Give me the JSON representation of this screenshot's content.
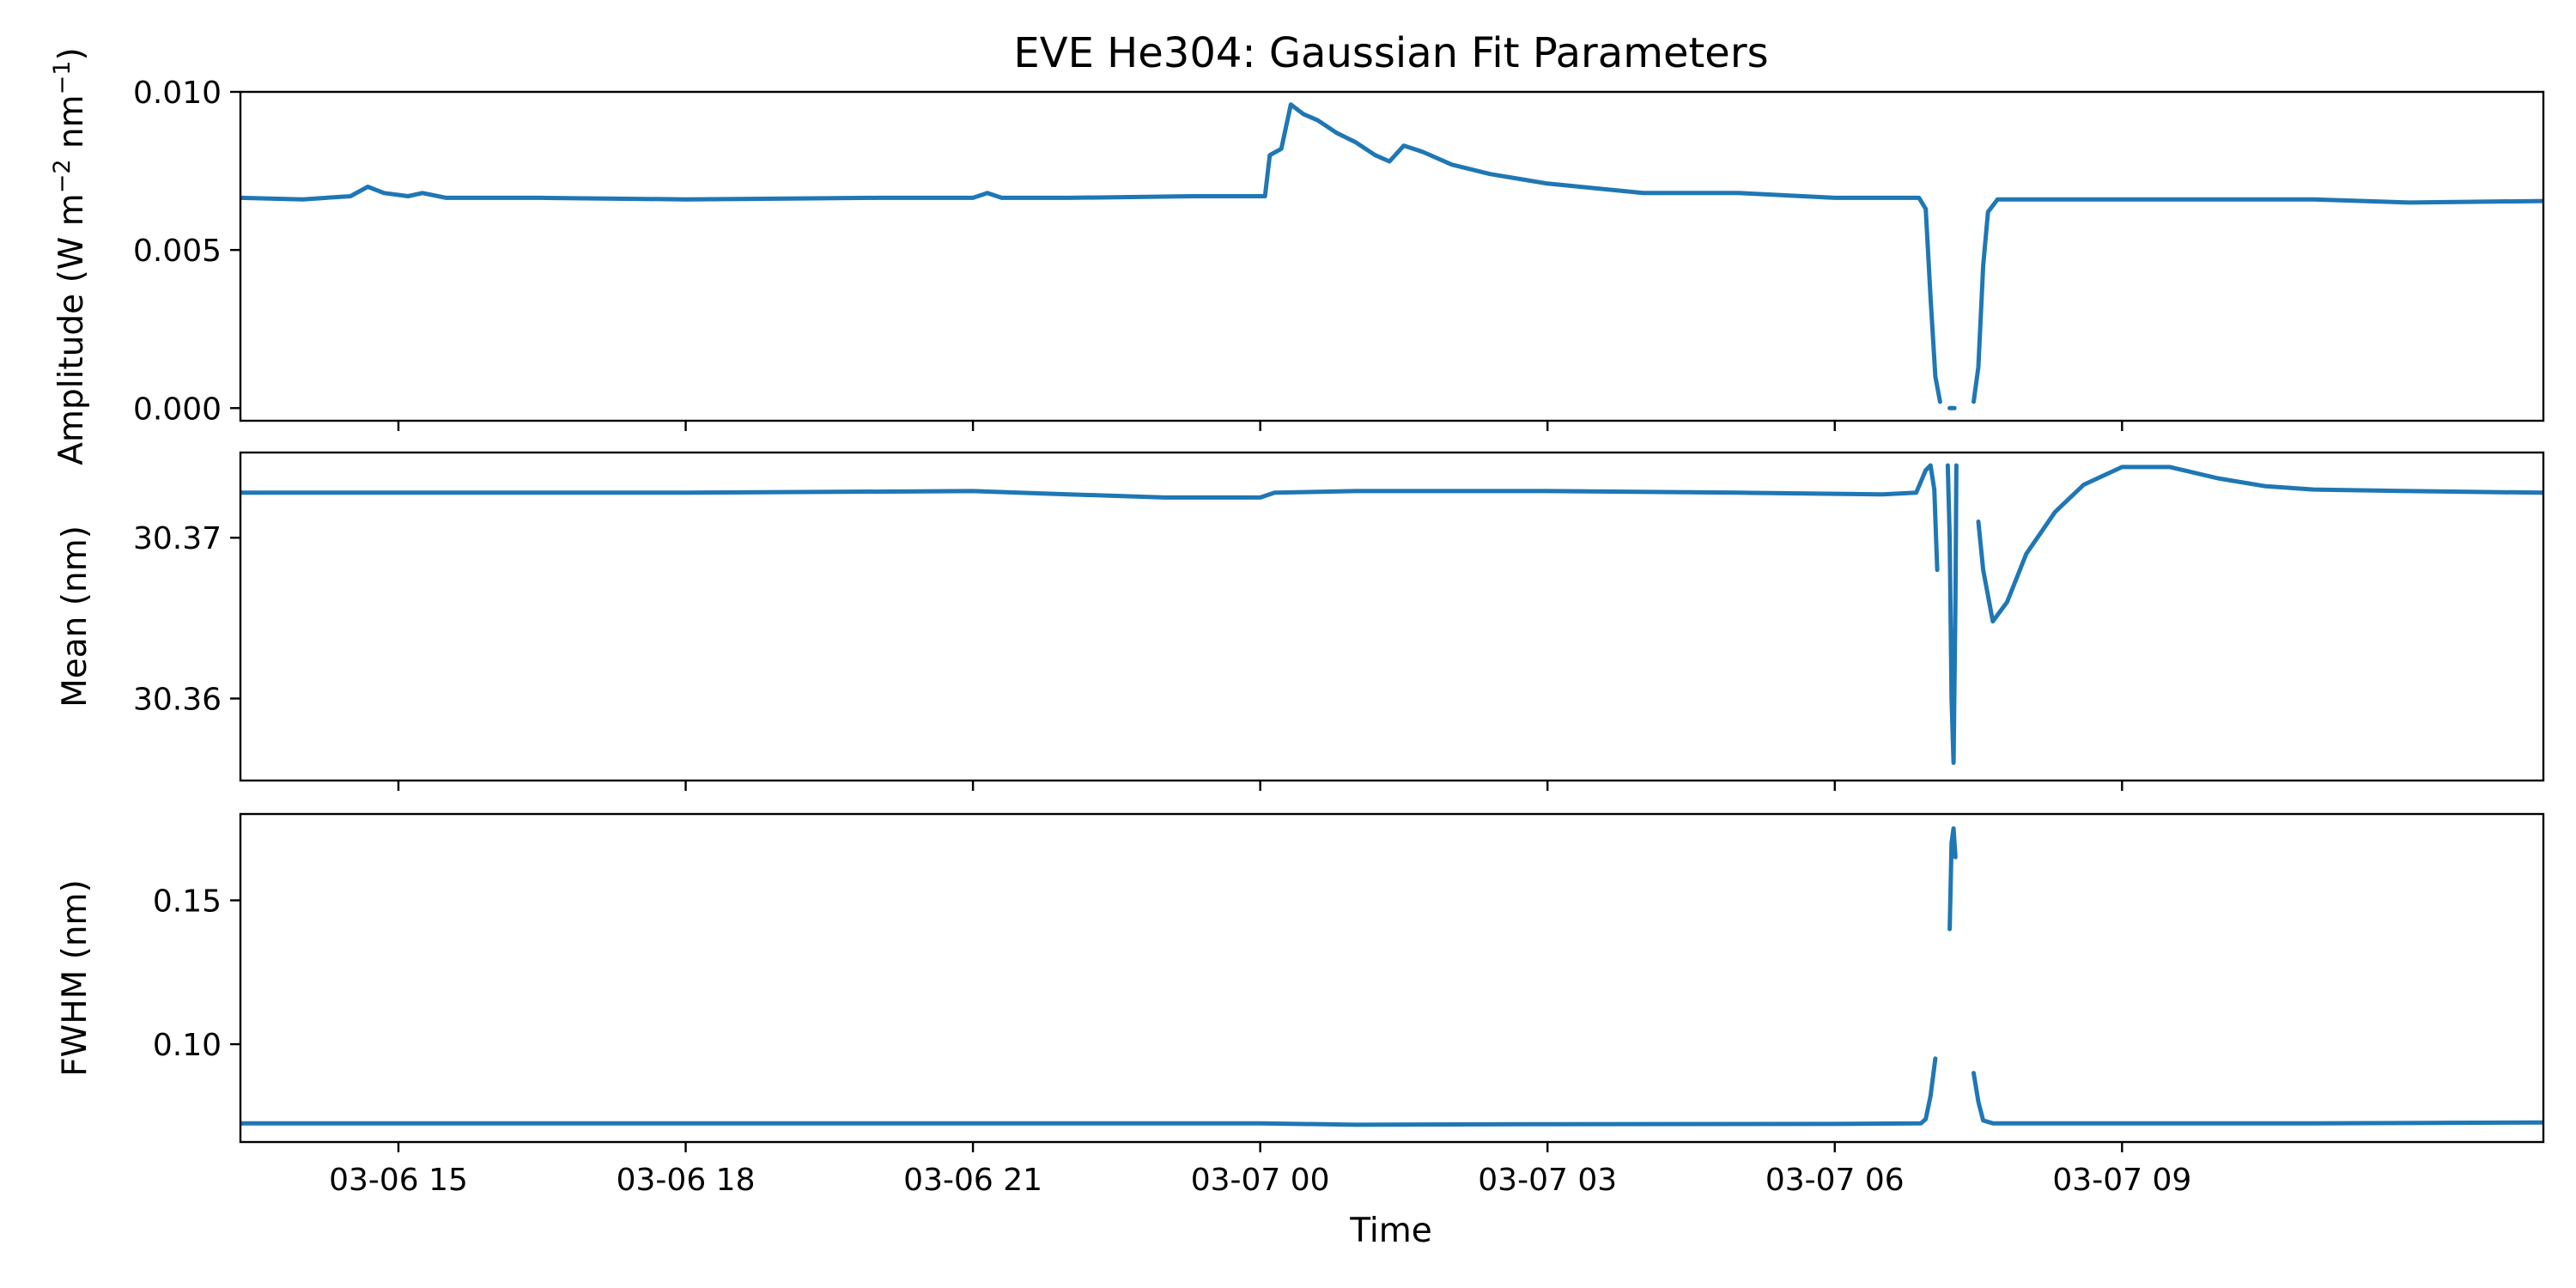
{
  "chart_data": {
    "type": "line",
    "title": "EVE He304: Gaussian Fit Parameters",
    "xlabel": "Time",
    "x_ticks": [
      "03-06 15",
      "03-06 18",
      "03-06 21",
      "03-07 00",
      "03-07 03",
      "03-07 06",
      "03-07 09"
    ],
    "x_ticks_hours": [
      15,
      18,
      21,
      24,
      27,
      30,
      33
    ],
    "xlim_hours": [
      13.35,
      37.4
    ],
    "x_units": "hours since 03-06 00",
    "grid": false,
    "color": "#1f77b4",
    "panels": [
      {
        "name": "amplitude",
        "ylabel": "Amplitude (W m",
        "ylabel_sup1": "−2",
        "ylabel_mid": " nm",
        "ylabel_sup2": "−1",
        "ylabel_end": ")",
        "ylim": [
          -0.0004,
          0.01
        ],
        "y_ticks": [
          0.0,
          0.005,
          0.01
        ],
        "y_tick_labels": [
          "0.000",
          "0.005",
          "0.010"
        ],
        "segments": [
          [
            [
              13.35,
              0.00665
            ],
            [
              14.0,
              0.0066
            ],
            [
              14.5,
              0.0067
            ],
            [
              14.68,
              0.007
            ],
            [
              14.85,
              0.0068
            ],
            [
              15.1,
              0.0067
            ],
            [
              15.25,
              0.0068
            ],
            [
              15.5,
              0.00665
            ],
            [
              16.5,
              0.00665
            ],
            [
              18.0,
              0.0066
            ],
            [
              20.0,
              0.00665
            ],
            [
              21.0,
              0.00665
            ],
            [
              21.15,
              0.0068
            ],
            [
              21.3,
              0.00665
            ],
            [
              22.0,
              0.00665
            ],
            [
              23.3,
              0.0067
            ],
            [
              24.05,
              0.0067
            ],
            [
              24.1,
              0.008
            ],
            [
              24.22,
              0.0082
            ],
            [
              24.32,
              0.0096
            ],
            [
              24.45,
              0.0093
            ],
            [
              24.6,
              0.0091
            ],
            [
              24.8,
              0.0087
            ],
            [
              25.0,
              0.0084
            ],
            [
              25.2,
              0.008
            ],
            [
              25.35,
              0.0078
            ],
            [
              25.5,
              0.0083
            ],
            [
              25.7,
              0.0081
            ],
            [
              26.0,
              0.0077
            ],
            [
              26.4,
              0.0074
            ],
            [
              27.0,
              0.0071
            ],
            [
              28.0,
              0.0068
            ],
            [
              29.0,
              0.0068
            ],
            [
              30.0,
              0.00665
            ],
            [
              30.88,
              0.00665
            ],
            [
              30.95,
              0.0063
            ],
            [
              31.0,
              0.0035
            ],
            [
              31.05,
              0.001
            ],
            [
              31.1,
              0.0002
            ]
          ],
          [
            [
              31.2,
              0.0
            ],
            [
              31.25,
              0.0
            ]
          ],
          [
            [
              31.45,
              0.0002
            ],
            [
              31.5,
              0.0013
            ],
            [
              31.55,
              0.0045
            ],
            [
              31.6,
              0.0062
            ],
            [
              31.7,
              0.0066
            ],
            [
              32.0,
              0.0066
            ],
            [
              33.0,
              0.0066
            ],
            [
              34.0,
              0.0066
            ],
            [
              35.0,
              0.0066
            ],
            [
              36.0,
              0.0065
            ],
            [
              37.4,
              0.00655
            ]
          ]
        ]
      },
      {
        "name": "mean",
        "ylabel": "Mean (nm)",
        "ylim": [
          30.3549,
          30.3753
        ],
        "y_ticks": [
          30.36,
          30.37
        ],
        "y_tick_labels": [
          "30.36",
          "30.37"
        ],
        "segments": [
          [
            [
              13.35,
              30.3728
            ],
            [
              15.0,
              30.3728
            ],
            [
              18.0,
              30.3728
            ],
            [
              21.0,
              30.3729
            ],
            [
              22.0,
              30.3727
            ],
            [
              23.0,
              30.3725
            ],
            [
              24.0,
              30.3725
            ],
            [
              24.15,
              30.3728
            ],
            [
              25.0,
              30.3729
            ],
            [
              27.0,
              30.3729
            ],
            [
              29.0,
              30.3728
            ],
            [
              30.5,
              30.3727
            ],
            [
              30.85,
              30.3728
            ],
            [
              30.95,
              30.3742
            ],
            [
              31.0,
              30.3745
            ],
            [
              31.04,
              30.373
            ],
            [
              31.07,
              30.368
            ]
          ],
          [
            [
              31.18,
              30.3745
            ],
            [
              31.2,
              30.37
            ],
            [
              31.22,
              30.36
            ],
            [
              31.24,
              30.356
            ],
            [
              31.26,
              30.366
            ],
            [
              31.27,
              30.3745
            ]
          ],
          [
            [
              31.5,
              30.371
            ],
            [
              31.55,
              30.368
            ],
            [
              31.65,
              30.3648
            ],
            [
              31.8,
              30.366
            ],
            [
              32.0,
              30.369
            ],
            [
              32.3,
              30.3716
            ],
            [
              32.6,
              30.3733
            ],
            [
              33.0,
              30.3744
            ],
            [
              33.5,
              30.3744
            ],
            [
              34.0,
              30.3737
            ],
            [
              34.5,
              30.3732
            ],
            [
              35.0,
              30.373
            ],
            [
              36.0,
              30.3729
            ],
            [
              37.4,
              30.3728
            ]
          ]
        ]
      },
      {
        "name": "fwhm",
        "ylabel": "FWHM (nm)",
        "ylim": [
          0.066,
          0.18
        ],
        "y_ticks": [
          0.1,
          0.15
        ],
        "y_tick_labels": [
          "0.10",
          "0.15"
        ],
        "segments": [
          [
            [
              13.35,
              0.0725
            ],
            [
              18.0,
              0.0725
            ],
            [
              21.0,
              0.0725
            ],
            [
              24.0,
              0.0725
            ],
            [
              25.0,
              0.072
            ],
            [
              27.0,
              0.0722
            ],
            [
              30.0,
              0.0723
            ],
            [
              30.9,
              0.0725
            ],
            [
              30.95,
              0.074
            ],
            [
              31.0,
              0.082
            ],
            [
              31.05,
              0.095
            ]
          ],
          [
            [
              31.2,
              0.14
            ],
            [
              31.22,
              0.17
            ],
            [
              31.24,
              0.175
            ],
            [
              31.26,
              0.165
            ]
          ],
          [
            [
              31.45,
              0.09
            ],
            [
              31.5,
              0.08
            ],
            [
              31.55,
              0.0735
            ],
            [
              31.65,
              0.0725
            ],
            [
              33.0,
              0.0725
            ],
            [
              35.0,
              0.0725
            ],
            [
              37.4,
              0.0728
            ]
          ]
        ]
      }
    ]
  }
}
